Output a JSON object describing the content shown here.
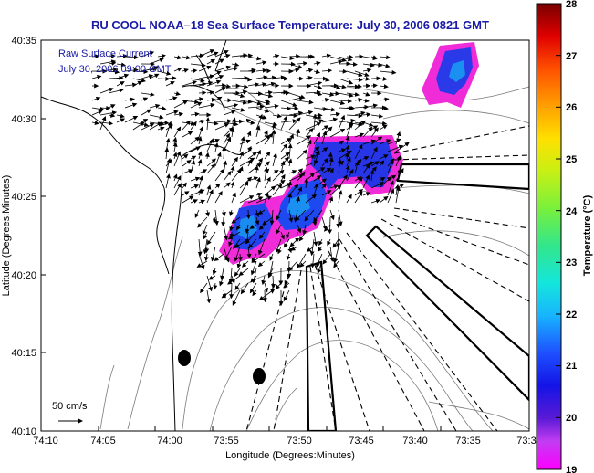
{
  "title": "RU COOL  NOAA–18  Sea Surface Temperature:  July 30, 2006 0821 GMT",
  "annotations": {
    "line1": "Raw Surface Current",
    "line2": "July 30, 2006 09:00 GMT"
  },
  "axes": {
    "xlabel": "Longitude (Degrees:Minutes)",
    "ylabel": "Latitude (Degrees:Minutes)",
    "x_ticks": [
      "74:10",
      "74:05",
      "74:00",
      "73:55",
      "73:50",
      "73:45",
      "73:40",
      "73:35",
      "73:3"
    ],
    "y_ticks": [
      "40:35",
      "40:30",
      "40:25",
      "40:20",
      "40:15",
      "40:10"
    ]
  },
  "scale_bar": {
    "label": "50 cm/s"
  },
  "colorbar": {
    "label": "Temperature (°C)",
    "ticks": [
      "28",
      "27",
      "26",
      "25",
      "24",
      "23",
      "22",
      "21",
      "20",
      "19"
    ],
    "min": 19,
    "max": 28
  },
  "colors": {
    "title": "#1a1aa6",
    "land_outline": "#000000"
  }
}
